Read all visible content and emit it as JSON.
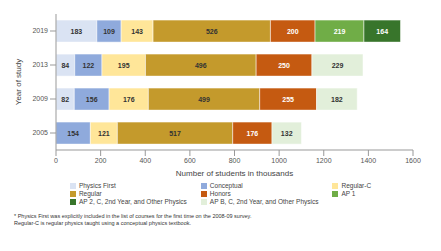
{
  "chart_data": {
    "type": "bar",
    "orientation": "horizontal",
    "stacked": true,
    "data_labels": true,
    "grid": false,
    "legend": "bottom",
    "x_label": "Number of students in thousands",
    "y_label": "Year of study",
    "categories": [
      "2005",
      "2009",
      "2013",
      "2019"
    ],
    "xlim": [
      0,
      1600
    ],
    "xticks": [
      0,
      200,
      400,
      600,
      800,
      1000,
      1200,
      1400,
      1600
    ],
    "series": [
      {
        "name": "Physics First",
        "color": "#dae3f3",
        "values": [
          null,
          82,
          84,
          183
        ]
      },
      {
        "name": "Conceptual",
        "color": "#8faadc",
        "values": [
          154,
          156,
          122,
          109
        ]
      },
      {
        "name": "Regular-C",
        "color": "#ffe699",
        "values": [
          121,
          176,
          195,
          143
        ]
      },
      {
        "name": "Regular",
        "color": "#c49a2c",
        "values": [
          517,
          499,
          496,
          526
        ]
      },
      {
        "name": "Honors",
        "color": "#c55a11",
        "values": [
          176,
          255,
          250,
          200
        ]
      },
      {
        "name": "AP 1",
        "color": "#70ad47",
        "values": [
          null,
          null,
          null,
          219
        ]
      },
      {
        "name": "AP 2, C, 2nd Year, and Other Physics",
        "color": "#38752b",
        "values": [
          null,
          null,
          null,
          164
        ]
      },
      {
        "name": "AP B, C, 2nd Year, and Other Physics",
        "color": "#e2efda",
        "values": [
          132,
          182,
          229,
          null
        ]
      }
    ],
    "notes": [
      "* Physics First was explicitly included in the list of courses for the first time on the 2008-09 survey.",
      "Regular-C is regular physics taught using a conceptual physics textbook."
    ]
  }
}
